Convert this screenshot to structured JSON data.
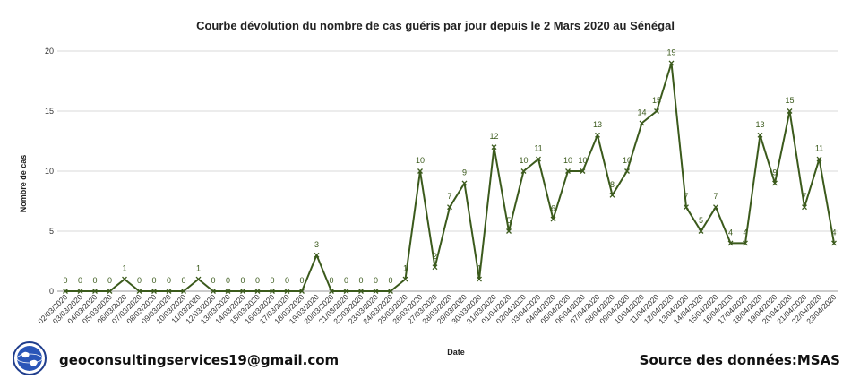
{
  "chart_data": {
    "type": "line",
    "title": "Courbe dévolution du nombre de cas guéris par jour depuis le 2 Mars 2020 au Sénégal",
    "xlabel": "Date",
    "ylabel": "Nombre de cas",
    "ylim": [
      0,
      20
    ],
    "yticks": [
      0,
      5,
      10,
      15,
      20
    ],
    "grid": true,
    "legend": "none",
    "color": "#3b5a1c",
    "categories": [
      "02/03/2020",
      "03/03/2020",
      "04/03/2020",
      "05/03/2020",
      "06/03/2020",
      "07/03/2020",
      "08/03/2020",
      "09/03/2020",
      "10/03/2020",
      "11/03/2020",
      "12/03/2020",
      "13/03/2020",
      "14/03/2020",
      "15/03/2020",
      "16/03/2020",
      "17/03/2020",
      "18/03/2020",
      "19/03/2020",
      "20/03/2020",
      "21/03/2020",
      "22/03/2020",
      "23/03/2020",
      "24/03/2020",
      "25/03/2020",
      "26/03/2020",
      "27/03/2020",
      "28/03/2020",
      "29/03/2020",
      "30/03/2020",
      "31/03/2020",
      "01/04/2020",
      "02/04/2020",
      "03/04/2020",
      "04/04/2020",
      "05/04/2020",
      "06/04/2020",
      "07/04/2020",
      "08/04/2020",
      "09/04/2020",
      "10/04/2020",
      "11/04/2020",
      "12/04/2020",
      "13/04/2020",
      "14/04/2020",
      "15/04/2020",
      "16/04/2020",
      "17/04/2020",
      "18/04/2020",
      "19/04/2020",
      "20/04/2020",
      "21/04/2020",
      "22/04/2020",
      "23/04/2020"
    ],
    "values": [
      0,
      0,
      0,
      0,
      1,
      0,
      0,
      0,
      0,
      1,
      0,
      0,
      0,
      0,
      0,
      0,
      0,
      3,
      0,
      0,
      0,
      0,
      0,
      1,
      10,
      2,
      7,
      9,
      1,
      12,
      5,
      10,
      11,
      6,
      10,
      10,
      13,
      8,
      10,
      14,
      15,
      19,
      7,
      5,
      7,
      4,
      4,
      13,
      9,
      15,
      7,
      11,
      4
    ]
  },
  "footer": {
    "email": "geoconsultingservices19@gmail.com",
    "source": "Source des données:MSAS"
  },
  "logo": {
    "icon": "globe-logo-icon",
    "color": "#1f3d8c"
  }
}
